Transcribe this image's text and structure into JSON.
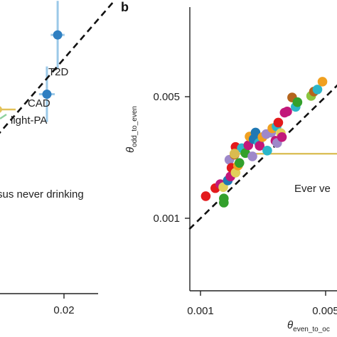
{
  "chart_data": [
    {
      "panel": "a",
      "type": "scatter",
      "x_ticks": [
        {
          "value": 0.02,
          "label": "0.02"
        }
      ],
      "xlim": [
        0.0,
        0.03
      ],
      "ylim": [
        0.0,
        0.03
      ],
      "reference_line": "y=x",
      "points": [
        {
          "label": "T2D",
          "x": 0.018,
          "y": 0.0205,
          "x_err": 0.0022,
          "y_err": 0.0027,
          "color": "#2f7fc1"
        },
        {
          "label": "CAD",
          "x": 0.0146,
          "y": 0.0158,
          "x_err": 0.0025,
          "y_err": 0.0022,
          "color": "#2f7fc1"
        }
      ],
      "text_labels": [
        "T2D",
        "CAD",
        "light-PA",
        "sus never drinking"
      ],
      "partial_mark_colors": [
        "#e2c25a",
        "#8fd19e"
      ]
    },
    {
      "panel": "b",
      "type": "scatter",
      "panel_label": "b",
      "xlabel_main": "θ",
      "xlabel_sub": "even_to_oc",
      "ylabel_main": "θ",
      "ylabel_sub": "odd_to_even",
      "x_scale": "log",
      "y_scale": "log",
      "xlim": [
        0.00085,
        0.0056
      ],
      "ylim": [
        0.00072,
        0.0084
      ],
      "x_ticks": [
        {
          "value": 0.001,
          "label": "0.001"
        },
        {
          "value": 0.005,
          "label": "0.005"
        }
      ],
      "y_ticks": [
        {
          "value": 0.001,
          "label": "0.001"
        },
        {
          "value": 0.005,
          "label": "0.005"
        }
      ],
      "reference_line": "y=x",
      "highlight": {
        "label": "Ever ve",
        "x": 0.00155,
        "y": 0.00235,
        "x_err_high": 0.0045,
        "color": "#d9bb4f"
      },
      "points": [
        {
          "x": 0.00107,
          "y": 0.00134,
          "color": "#e31a1c"
        },
        {
          "x": 0.00121,
          "y": 0.00149,
          "color": "#e31a1c"
        },
        {
          "x": 0.00129,
          "y": 0.00157,
          "color": "#c2187a"
        },
        {
          "x": 0.00134,
          "y": 0.00151,
          "color": "#e2d05a"
        },
        {
          "x": 0.00135,
          "y": 0.00123,
          "color": "#33a02c"
        },
        {
          "x": 0.00135,
          "y": 0.0013,
          "color": "#33a02c"
        },
        {
          "x": 0.00142,
          "y": 0.00165,
          "color": "#1f78b4"
        },
        {
          "x": 0.00145,
          "y": 0.00217,
          "color": "#9e88c9"
        },
        {
          "x": 0.00147,
          "y": 0.00174,
          "color": "#c2187a"
        },
        {
          "x": 0.00149,
          "y": 0.00195,
          "color": "#e31a1c"
        },
        {
          "x": 0.00155,
          "y": 0.00232,
          "color": "#b5651d"
        },
        {
          "x": 0.00157,
          "y": 0.00183,
          "color": "#e2d05a"
        },
        {
          "x": 0.00157,
          "y": 0.00257,
          "color": "#e31a1c"
        },
        {
          "x": 0.00162,
          "y": 0.00201,
          "color": "#f0a020"
        },
        {
          "x": 0.00165,
          "y": 0.00208,
          "color": "#33a02c"
        },
        {
          "x": 0.0017,
          "y": 0.00253,
          "color": "#2bb6c9"
        },
        {
          "x": 0.00178,
          "y": 0.00237,
          "color": "#33a02c"
        },
        {
          "x": 0.00185,
          "y": 0.00263,
          "color": "#c2187a"
        },
        {
          "x": 0.00188,
          "y": 0.00295,
          "color": "#f0a020"
        },
        {
          "x": 0.00195,
          "y": 0.00227,
          "color": "#9e88c9"
        },
        {
          "x": 0.00198,
          "y": 0.00285,
          "color": "#1f78b4"
        },
        {
          "x": 0.00203,
          "y": 0.00311,
          "color": "#1f78b4"
        },
        {
          "x": 0.00212,
          "y": 0.00271,
          "color": "#2bb6c9"
        },
        {
          "x": 0.00214,
          "y": 0.00261,
          "color": "#c2187a"
        },
        {
          "x": 0.00222,
          "y": 0.00293,
          "color": "#f0a020"
        },
        {
          "x": 0.00233,
          "y": 0.00305,
          "color": "#9e88c9"
        },
        {
          "x": 0.00236,
          "y": 0.00245,
          "color": "#2bb6c9"
        },
        {
          "x": 0.00248,
          "y": 0.00311,
          "color": "#9e88c9"
        },
        {
          "x": 0.00252,
          "y": 0.00329,
          "color": "#f0a020"
        },
        {
          "x": 0.00262,
          "y": 0.00279,
          "color": "#c2187a"
        },
        {
          "x": 0.00266,
          "y": 0.00337,
          "color": "#2bb6c9"
        },
        {
          "x": 0.00268,
          "y": 0.00271,
          "color": "#9e88c9"
        },
        {
          "x": 0.00272,
          "y": 0.00355,
          "color": "#e31a1c"
        },
        {
          "x": 0.00281,
          "y": 0.00309,
          "color": "#e2d05a"
        },
        {
          "x": 0.00285,
          "y": 0.00293,
          "color": "#c2187a"
        },
        {
          "x": 0.00295,
          "y": 0.00405,
          "color": "#c2187a"
        },
        {
          "x": 0.00305,
          "y": 0.00411,
          "color": "#c2187a"
        },
        {
          "x": 0.00325,
          "y": 0.00495,
          "color": "#b5651d"
        },
        {
          "x": 0.0034,
          "y": 0.00437,
          "color": "#2bb6c9"
        },
        {
          "x": 0.00348,
          "y": 0.00465,
          "color": "#33a02c"
        },
        {
          "x": 0.00415,
          "y": 0.00505,
          "color": "#8cc63f"
        },
        {
          "x": 0.0043,
          "y": 0.00535,
          "color": "#b5651d"
        },
        {
          "x": 0.0045,
          "y": 0.0055,
          "color": "#2bb6c9"
        },
        {
          "x": 0.0048,
          "y": 0.0061,
          "color": "#f0a020"
        }
      ]
    }
  ]
}
